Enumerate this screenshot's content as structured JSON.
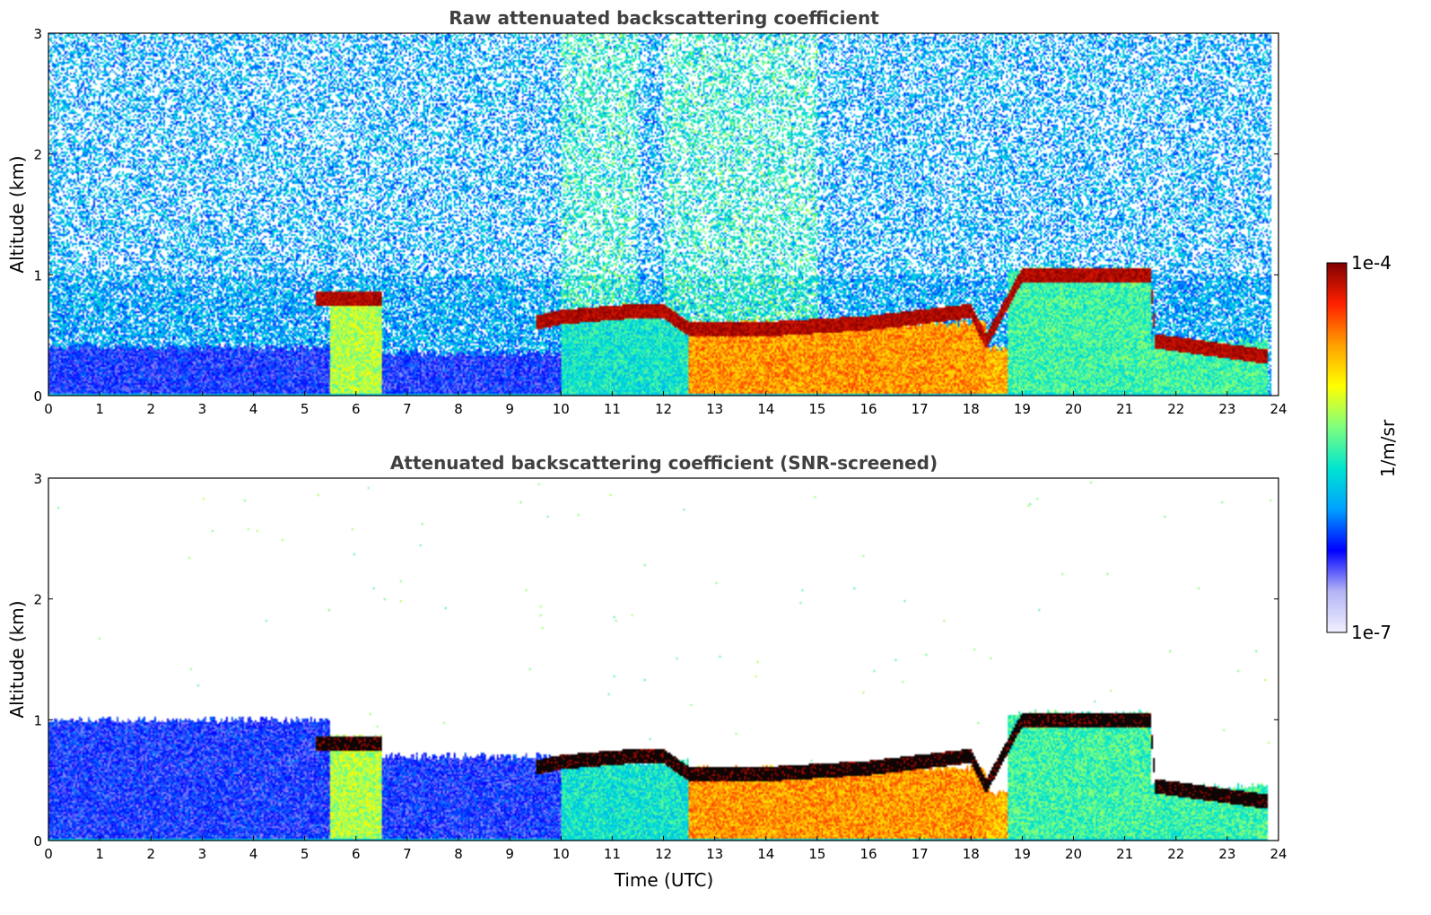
{
  "chart_data": [
    {
      "type": "heatmap",
      "title": "Raw attenuated backscattering coefficient",
      "xlabel": "",
      "ylabel": "Altitude (km)",
      "xlim": [
        0,
        24
      ],
      "ylim": [
        0,
        3
      ],
      "x_ticks": [
        "0",
        "1",
        "2",
        "3",
        "4",
        "5",
        "6",
        "7",
        "8",
        "9",
        "10",
        "11",
        "12",
        "13",
        "14",
        "15",
        "16",
        "17",
        "18",
        "19",
        "20",
        "21",
        "22",
        "23",
        "24"
      ],
      "y_ticks": [
        "0",
        "1",
        "2",
        "3"
      ],
      "screened": false,
      "layers": [
        {
          "t0": 0,
          "t1": 5.5,
          "top": 0.4,
          "level": 0.22
        },
        {
          "t0": 5.2,
          "t1": 6.5,
          "top": 0.85,
          "level": 0.6
        },
        {
          "t0": 6.5,
          "t1": 10,
          "top": 0.35,
          "level": 0.22
        },
        {
          "t0": 10,
          "t1": 12.5,
          "top": 0.65,
          "level": 0.45
        },
        {
          "t0": 12.5,
          "t1": 18.3,
          "top": 0.6,
          "level": 0.78
        },
        {
          "t0": 18.3,
          "t1": 18.7,
          "top": 0.4,
          "level": 0.75
        },
        {
          "t0": 18.7,
          "t1": 21.5,
          "top": 1.05,
          "level": 0.5
        },
        {
          "t0": 21.5,
          "t1": 23.8,
          "top": 0.45,
          "level": 0.5
        }
      ],
      "cloud_base": [
        {
          "t": 5.2,
          "h": 0.8
        },
        {
          "t": 6.5,
          "h": 0.8
        },
        {
          "t": 9.5,
          "h": 0.6
        },
        {
          "t": 10,
          "h": 0.65
        },
        {
          "t": 11.5,
          "h": 0.7
        },
        {
          "t": 12,
          "h": 0.7
        },
        {
          "t": 12.5,
          "h": 0.55
        },
        {
          "t": 14,
          "h": 0.55
        },
        {
          "t": 16,
          "h": 0.6
        },
        {
          "t": 18,
          "h": 0.7
        },
        {
          "t": 18.3,
          "h": 0.45
        },
        {
          "t": 19,
          "h": 1.0
        },
        {
          "t": 21.5,
          "h": 1.0
        },
        {
          "t": 21.6,
          "h": 0.45
        },
        {
          "t": 23.8,
          "h": 0.32
        }
      ]
    },
    {
      "type": "heatmap",
      "title": "Attenuated backscattering coefficient (SNR-screened)",
      "xlabel": "Time (UTC)",
      "ylabel": "Altitude (km)",
      "xlim": [
        0,
        24
      ],
      "ylim": [
        0,
        3
      ],
      "x_ticks": [
        "0",
        "1",
        "2",
        "3",
        "4",
        "5",
        "6",
        "7",
        "8",
        "9",
        "10",
        "11",
        "12",
        "13",
        "14",
        "15",
        "16",
        "17",
        "18",
        "19",
        "20",
        "21",
        "22",
        "23",
        "24"
      ],
      "y_ticks": [
        "0",
        "1",
        "2",
        "3"
      ],
      "screened": true,
      "layers": [
        {
          "t0": 0,
          "t1": 5.5,
          "top": 1.0,
          "level": 0.22
        },
        {
          "t0": 5.2,
          "t1": 6.5,
          "top": 0.85,
          "level": 0.6
        },
        {
          "t0": 6.5,
          "t1": 10,
          "top": 0.7,
          "level": 0.22
        },
        {
          "t0": 10,
          "t1": 12.5,
          "top": 0.65,
          "level": 0.45
        },
        {
          "t0": 12.5,
          "t1": 18.3,
          "top": 0.6,
          "level": 0.78
        },
        {
          "t0": 18.3,
          "t1": 18.7,
          "top": 0.4,
          "level": 0.75
        },
        {
          "t0": 18.7,
          "t1": 21.5,
          "top": 1.05,
          "level": 0.5
        },
        {
          "t0": 21.5,
          "t1": 23.8,
          "top": 0.45,
          "level": 0.5
        }
      ],
      "cloud_base": [
        {
          "t": 5.2,
          "h": 0.8
        },
        {
          "t": 6.5,
          "h": 0.8
        },
        {
          "t": 9.5,
          "h": 0.6
        },
        {
          "t": 10,
          "h": 0.65
        },
        {
          "t": 11.5,
          "h": 0.7
        },
        {
          "t": 12,
          "h": 0.7
        },
        {
          "t": 12.5,
          "h": 0.55
        },
        {
          "t": 14,
          "h": 0.55
        },
        {
          "t": 16,
          "h": 0.6
        },
        {
          "t": 18,
          "h": 0.7
        },
        {
          "t": 18.3,
          "h": 0.45
        },
        {
          "t": 19,
          "h": 1.0
        },
        {
          "t": 21.5,
          "h": 1.0
        },
        {
          "t": 21.6,
          "h": 0.45
        },
        {
          "t": 23.8,
          "h": 0.32
        }
      ]
    }
  ],
  "colorbar": {
    "min_label": "1e-7",
    "max_label": "1e-4",
    "label": "1/m/sr",
    "colormap": "jet",
    "colors": [
      "#f0f0ff",
      "#b4b4f5",
      "#0000ff",
      "#00a0ff",
      "#00e5d0",
      "#7fff7f",
      "#ffff00",
      "#ffa000",
      "#ff2000",
      "#800000"
    ]
  }
}
